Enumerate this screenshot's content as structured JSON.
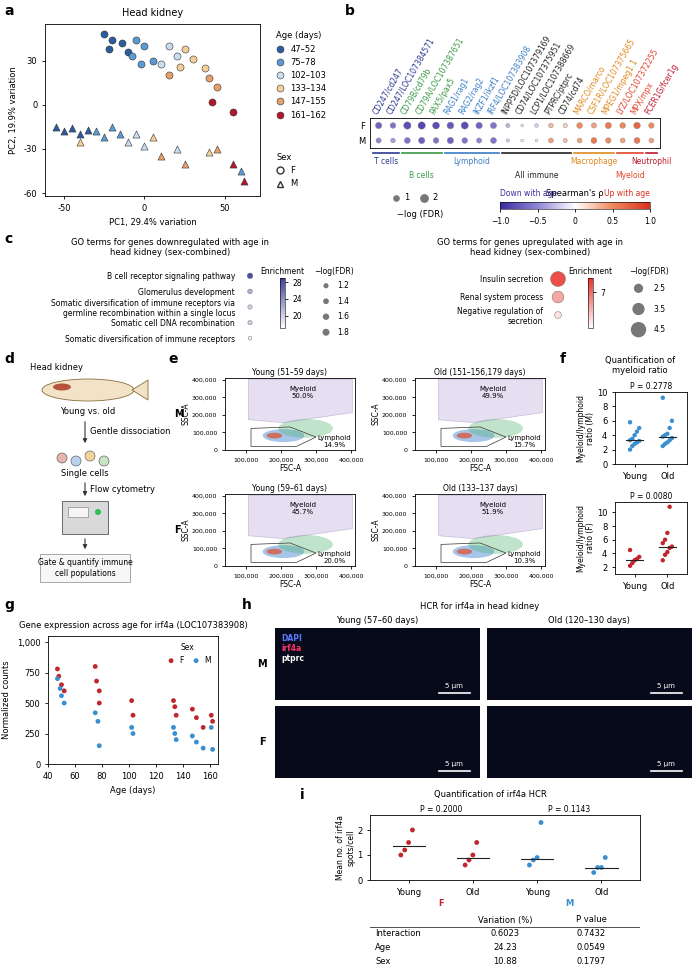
{
  "chart_data": [
    {
      "type": "scatter",
      "label": "a",
      "title": "Head kidney",
      "x_label": "PC1, 29.4% variation",
      "y_label": "PC2, 19.9% variation",
      "xlim": [
        -62,
        72
      ],
      "xticks": [
        -50,
        0,
        50
      ],
      "ylim": [
        -62,
        55
      ],
      "yticks": [
        -60,
        -30,
        0,
        30
      ],
      "legend_title": "Age (days)",
      "sex_title": "Sex",
      "groups": [
        {
          "name": "47–52",
          "color": "#2b5c9e"
        },
        {
          "name": "75–78",
          "color": "#5b9bd5"
        },
        {
          "name": "102–103",
          "color": "#c9ddef"
        },
        {
          "name": "133–134",
          "color": "#f4cf9a"
        },
        {
          "name": "147–155",
          "color": "#e8a06a"
        },
        {
          "name": "161–162",
          "color": "#b2182b"
        }
      ],
      "sexes": [
        {
          "name": "F",
          "marker": "circle"
        },
        {
          "name": "M",
          "marker": "triangle"
        }
      ],
      "points": {
        "x": [
          -25,
          -20,
          -14,
          -22,
          -10,
          -5,
          0,
          -8,
          5,
          -2,
          15,
          20,
          10,
          25,
          30,
          22,
          38,
          15,
          40,
          45,
          42,
          55,
          -55,
          -50,
          -45,
          -40,
          -35,
          -30,
          -25,
          -20,
          -15,
          60,
          -10,
          -5,
          0,
          20,
          -40,
          5,
          40,
          10,
          25,
          45,
          55,
          62
        ],
        "y": [
          48,
          44,
          42,
          38,
          36,
          44,
          40,
          33,
          30,
          28,
          40,
          33,
          28,
          38,
          31,
          26,
          25,
          20,
          18,
          12,
          2,
          -5,
          -15,
          -18,
          -16,
          -20,
          -17,
          -18,
          -22,
          -15,
          -20,
          -45,
          -25,
          -20,
          -28,
          -30,
          -25,
          -22,
          -32,
          -35,
          -40,
          -30,
          -40,
          -52
        ],
        "group": [
          "47–52",
          "47–52",
          "47–52",
          "47–52",
          "47–52",
          "75–78",
          "75–78",
          "75–78",
          "75–78",
          "75–78",
          "102–103",
          "102–103",
          "102–103",
          "133–134",
          "133–134",
          "133–134",
          "133–134",
          "147–155",
          "147–155",
          "147–155",
          "161–162",
          "161–162",
          "47–52",
          "47–52",
          "47–52",
          "47–52",
          "47–52",
          "75–78",
          "75–78",
          "75–78",
          "75–78",
          "75–78",
          "102–103",
          "102–103",
          "102–103",
          "102–103",
          "133–134",
          "133–134",
          "133–134",
          "147–155",
          "147–155",
          "147–155",
          "161–162",
          "161–162"
        ],
        "sex": [
          "F",
          "F",
          "F",
          "F",
          "F",
          "F",
          "F",
          "F",
          "F",
          "F",
          "F",
          "F",
          "F",
          "F",
          "F",
          "F",
          "F",
          "F",
          "F",
          "F",
          "F",
          "F",
          "M",
          "M",
          "M",
          "M",
          "M",
          "M",
          "M",
          "M",
          "M",
          "M",
          "M",
          "M",
          "M",
          "M",
          "M",
          "M",
          "M",
          "M",
          "M",
          "M",
          "M",
          "M"
        ]
      }
    },
    {
      "type": "dot_matrix",
      "label": "b",
      "rows": [
        "F",
        "M"
      ],
      "genes": [
        "CD247/cd247",
        "CD247/LOC107384571",
        "CD79B/cd79b",
        "CD79A/LOC107387651",
        "PAX5/pax5",
        "RAG1/rag1",
        "RAG2/rag2",
        "IKZF1/ikzf1",
        "IRF4/LOC107383908",
        "INPP5D/LOC107379169",
        "CD74/LOC107375951",
        "LCP1/LOC107388669",
        "PTPRC/ptprc",
        "CD74/cd74",
        "MARCO/marco",
        "CSF1R/LOC107375665",
        "MPEG1/mpeg1.1",
        "LYZ/LOC107372255",
        "MPX/mpx",
        "FCER1G/fcer1g"
      ],
      "gene_groups": [
        "T cells",
        "T cells",
        "B cells",
        "B cells",
        "B cells",
        "Lymphoid",
        "Lymphoid",
        "Lymphoid",
        "Lymphoid",
        "All immune",
        "All immune",
        "All immune",
        "All immune",
        "All immune",
        "Macrophage",
        "Macrophage",
        "Macrophage",
        "Myeloid",
        "Myeloid",
        "Neutrophil"
      ],
      "groups": [
        {
          "name": "T cells",
          "color": "#2b3a8f"
        },
        {
          "name": "B cells",
          "color": "#3a9a46"
        },
        {
          "name": "Lymphoid",
          "color": "#3b7dc4"
        },
        {
          "name": "All immune",
          "color": "#222222"
        },
        {
          "name": "Macrophage",
          "color": "#e0891e"
        },
        {
          "name": "Myeloid",
          "color": "#e0442a"
        },
        {
          "name": "Neutrophil",
          "color": "#c0182b"
        }
      ],
      "rho": [
        [
          -0.7,
          -0.6,
          -0.8,
          -0.85,
          -0.8,
          -0.75,
          -0.8,
          -0.7,
          -0.6,
          -0.3,
          -0.1,
          -0.2,
          0.3,
          0.2,
          0.5,
          0.4,
          0.6,
          0.5,
          0.7,
          0.5
        ],
        [
          -0.5,
          -0.4,
          -0.6,
          -0.7,
          -0.6,
          -0.7,
          -0.6,
          -0.5,
          -0.6,
          -0.2,
          0.1,
          -0.1,
          0.4,
          0.3,
          0.4,
          0.6,
          0.5,
          0.4,
          0.6,
          0.4
        ]
      ],
      "neg_log_fdr": [
        [
          1.5,
          1.2,
          2.0,
          2.0,
          1.8,
          1.7,
          1.9,
          1.5,
          1.4,
          0.6,
          0.3,
          0.5,
          0.8,
          0.7,
          1.2,
          1.0,
          1.4,
          1.2,
          1.6,
          1.1
        ],
        [
          1.0,
          0.8,
          1.3,
          1.5,
          1.2,
          1.5,
          1.2,
          1.0,
          1.3,
          0.4,
          0.3,
          0.3,
          0.9,
          0.6,
          0.9,
          1.3,
          1.1,
          0.9,
          1.3,
          0.9
        ]
      ],
      "colorbar": {
        "label": "Spearman's ρ",
        "lim": [
          -1,
          1
        ],
        "ticks": [
          {
            "value": -1,
            "label": "−1.0"
          },
          {
            "value": -0.5,
            "label": "−0.5"
          },
          0,
          0.5,
          1.0
        ],
        "low_text": "Down with age",
        "high_text": "Up with age"
      },
      "size_legend": {
        "label": "−log (FDR)",
        "values": [
          1,
          2
        ]
      }
    },
    {
      "type": "dot_enrichment",
      "label": "c",
      "title": "GO terms for genes downregulated with age in head kidney (sex-combined)",
      "terms": [
        "B cell receptor signaling pathway",
        "Glomerulus development",
        "Somatic diversification of immune receptors via germline recombination within a single locus",
        "Somatic cell DNA recombination",
        "Somatic diversification of immune receptors"
      ],
      "enrichment": [
        28,
        22,
        20,
        20,
        18
      ],
      "neg_log_fdr": [
        1.8,
        1.5,
        1.4,
        1.4,
        1.2
      ],
      "color": "#3b3f9e",
      "colorbar": {
        "label": "Enrichment",
        "lim": [
          17,
          29
        ],
        "ticks": [
          20,
          24,
          28
        ]
      },
      "size_legend": {
        "label": "−log(FDR)",
        "values": [
          1.2,
          1.4,
          1.6,
          1.8
        ]
      }
    },
    {
      "type": "dot_enrichment",
      "title": "GO terms for genes upregulated with age in head kidney (sex-combined)",
      "terms": [
        "Insulin secretion",
        "Renal system process",
        "Negative regulation of secretion"
      ],
      "enrichment": [
        7.5,
        6,
        5
      ],
      "neg_log_fdr": [
        4.8,
        3.8,
        2.2
      ],
      "color": "#e8322a",
      "colorbar": {
        "label": "Enrichment",
        "lim": [
          4.5,
          8
        ],
        "ticks": [
          7
        ]
      },
      "size_legend": {
        "label": "−log(FDR)",
        "values": [
          2.5,
          3.5,
          4.5
        ]
      }
    },
    {
      "type": "flow_gates",
      "label": "e",
      "x_label": "FSC-A",
      "y_label": "SSC-A",
      "xlim": [
        40000,
        410000
      ],
      "xticks": [
        {
          "value": 100000,
          "label": "100,000"
        },
        {
          "value": 200000,
          "label": "200,000"
        },
        {
          "value": 300000,
          "label": "300,000"
        },
        {
          "value": 400000,
          "label": "400,000"
        }
      ],
      "ylim": [
        0,
        410000
      ],
      "yticks": [
        0,
        {
          "value": 100000,
          "label": "100,000"
        },
        {
          "value": 200000,
          "label": "200,000"
        },
        {
          "value": 300000,
          "label": "300,000"
        },
        {
          "value": 400000,
          "label": "400,000"
        }
      ],
      "panels": [
        {
          "row": "M",
          "title": "Young (51–59 days)",
          "gates": [
            {
              "name": "Myeloid",
              "label": "50.0%"
            },
            {
              "name": "Lymphoid",
              "label": "14.9%"
            }
          ]
        },
        {
          "row": "M",
          "title": "Old (151–156,179 days)",
          "gates": [
            {
              "name": "Myeloid",
              "label": "49.9%"
            },
            {
              "name": "Lymphoid",
              "label": "15.7%"
            }
          ]
        },
        {
          "row": "F",
          "title": "Young (59–61 days)",
          "gates": [
            {
              "name": "Myeloid",
              "label": "45.7%"
            },
            {
              "name": "Lymphoid",
              "label": "20.0%"
            }
          ]
        },
        {
          "row": "F",
          "title": "Old (133–137 days)",
          "gates": [
            {
              "name": "Myeloid",
              "label": "51.9%"
            },
            {
              "name": "Lymphoid",
              "label": "10.3%"
            }
          ]
        }
      ]
    },
    {
      "type": "strip",
      "label": "f",
      "title": "Quantification of myeloid ratio",
      "categories": [
        "Young",
        "Old"
      ],
      "panels": [
        {
          "y_label": "Myeloid/lymphoid ratio (M)",
          "p_label": "P = 0.2778",
          "color": "#3a8fd1",
          "ylim": [
            0,
            10
          ],
          "yticks": [
            0,
            2,
            4,
            6,
            8,
            10
          ],
          "values": [
            [
              2.0,
              2.5,
              2.8,
              3.0,
              3.2,
              3.3,
              3.5,
              4.0,
              4.5,
              5.0,
              5.8
            ],
            [
              2.5,
              2.8,
              3.0,
              3.3,
              3.6,
              3.8,
              4.0,
              4.2,
              5.0,
              6.0,
              9.2
            ]
          ]
        },
        {
          "y_label": "Myeloid/lymphoid ratio (F)",
          "p_label": "P = 0.0080",
          "color": "#c0272d",
          "ylim": [
            1,
            11.5
          ],
          "yticks": [
            2,
            4,
            6,
            8,
            10
          ],
          "values": [
            [
              2.2,
              2.6,
              3.0,
              3.2,
              3.5,
              4.5
            ],
            [
              3.0,
              3.8,
              4.2,
              4.8,
              5.0,
              5.5,
              6.0,
              7.0,
              10.8
            ]
          ]
        }
      ]
    },
    {
      "type": "scatter",
      "label": "g",
      "title": "Gene expression across age for irf4a (LOC107383908)",
      "x_label": "Age (days)",
      "y_label": "Normalized counts",
      "xlim": [
        40,
        166
      ],
      "xticks": [
        40,
        60,
        80,
        100,
        120,
        140,
        160
      ],
      "ylim": [
        0,
        1050
      ],
      "yticks": [
        0,
        250,
        500,
        750,
        {
          "value": 1000,
          "label": "1,000"
        }
      ],
      "legend": "upper right",
      "legend_title": "Sex",
      "series": [
        {
          "name": "F",
          "color": "#c0272d",
          "x": [
            47,
            48,
            50,
            52,
            75,
            76,
            78,
            78,
            102,
            103,
            133,
            134,
            135,
            147,
            150,
            155,
            161,
            162
          ],
          "values": [
            780,
            720,
            650,
            600,
            800,
            680,
            600,
            500,
            520,
            400,
            520,
            470,
            400,
            450,
            380,
            300,
            400,
            350
          ]
        },
        {
          "name": "M",
          "color": "#3a8fd1",
          "x": [
            47,
            49,
            50,
            52,
            75,
            77,
            78,
            102,
            103,
            133,
            134,
            135,
            147,
            150,
            155,
            161,
            162
          ],
          "values": [
            700,
            620,
            560,
            500,
            420,
            350,
            150,
            300,
            250,
            300,
            250,
            200,
            230,
            180,
            130,
            300,
            120
          ]
        }
      ]
    },
    {
      "type": "strip",
      "label": "i",
      "title": "Quantification of irf4a HCR",
      "y_label": "Mean no. of irf4a spots/cell",
      "ylim": [
        0,
        2.6
      ],
      "yticks": [
        0,
        1,
        2
      ],
      "categories": [
        "Young",
        "Old",
        "Young",
        "Old"
      ],
      "groups": [
        {
          "name": "F",
          "color": "#c0272d",
          "p_label": "P = 0.2000"
        },
        {
          "name": "M",
          "color": "#3a8fd1",
          "p_label": "P = 0.1143"
        }
      ],
      "values": [
        [
          1.0,
          1.2,
          1.5,
          2.0
        ],
        [
          0.6,
          0.8,
          1.0,
          1.5
        ],
        [
          0.6,
          0.8,
          0.9,
          2.3
        ],
        [
          0.3,
          0.5,
          0.5,
          0.9
        ]
      ],
      "table": {
        "columns": [
          "Variation (%)",
          "P value"
        ],
        "rows": [
          [
            "Interaction",
            "0.6023",
            "0.7432"
          ],
          [
            "Age",
            "24.23",
            "0.0549"
          ],
          [
            "Sex",
            "10.88",
            "0.1797"
          ]
        ]
      }
    }
  ],
  "diagram": {
    "label": "d",
    "steps": [
      "Head kidney",
      "Young vs. old",
      "Gentle dissociation",
      "Single cells",
      "Flow cytometry",
      "Gate & quantify immune cell populations"
    ]
  },
  "images": {
    "label": "h",
    "title": "HCR for irf4a in head kidney",
    "columns": [
      "Young (57–60 days)",
      "Old (120–130 days)"
    ],
    "rows": [
      "M",
      "F"
    ],
    "channels": [
      {
        "name": "DAPI",
        "color": "#5a7cff"
      },
      {
        "name": "irf4a",
        "color": "#ff3366"
      },
      {
        "name": "ptprc",
        "color": "#ffffff"
      }
    ],
    "scale_bar": "5 μm"
  }
}
